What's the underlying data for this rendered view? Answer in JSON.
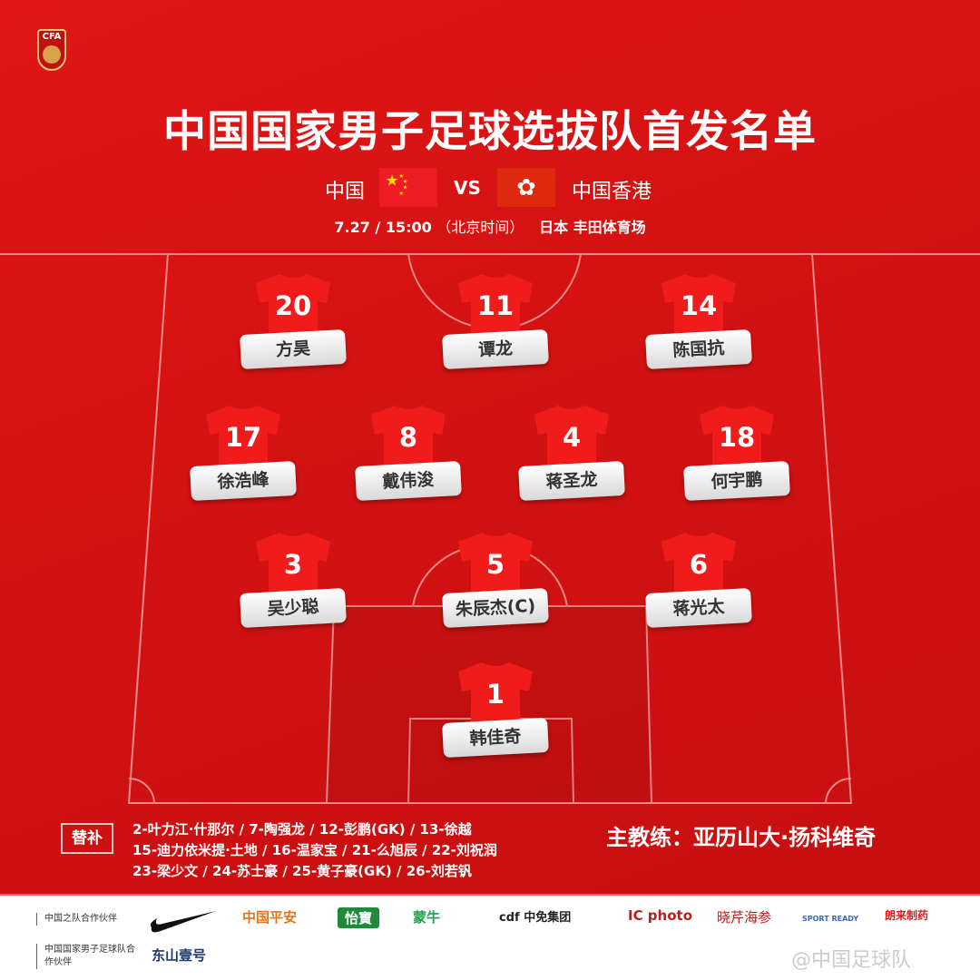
{
  "logo_text": "CFA",
  "title": "中国国家男子足球选拔队首发名单",
  "match": {
    "home": "中国",
    "vs": "VS",
    "away": "中国香港",
    "date_time": "7.27 / 15:00",
    "timezone": "（北京时间）",
    "venue": "日本 丰田体育场"
  },
  "colors": {
    "background": "#d41212",
    "jersey": "#f01c1c",
    "name_label": "#ffffff"
  },
  "players": [
    {
      "number": "20",
      "name": "方昊"
    },
    {
      "number": "11",
      "name": "谭龙"
    },
    {
      "number": "14",
      "name": "陈国抗"
    },
    {
      "number": "17",
      "name": "徐浩峰"
    },
    {
      "number": "8",
      "name": "戴伟浚"
    },
    {
      "number": "4",
      "name": "蒋圣龙"
    },
    {
      "number": "18",
      "name": "何宇鹏"
    },
    {
      "number": "3",
      "name": "吴少聪"
    },
    {
      "number": "5",
      "name": "朱辰杰(C)"
    },
    {
      "number": "6",
      "name": "蒋光太"
    },
    {
      "number": "1",
      "name": "韩佳奇"
    }
  ],
  "subs": {
    "label": "替补",
    "lines": [
      "2-叶力江·什那尔 / 7-陶强龙 / 12-彭鹏(GK) / 13-徐越",
      "15-迪力依米提·土地 / 16-温家宝 / 21-么旭辰 / 22-刘祝润",
      "23-梁少文 / 24-苏士豪 / 25-黄子豪(GK) / 26-刘若钒"
    ]
  },
  "coach": "主教练：亚历山大·扬科维奇",
  "footer": {
    "partner_label_1": "中国之队合作伙伴",
    "partner_label_2": "中国国家男子足球队合作伙伴",
    "sponsors": [
      "中国平安",
      "怡寶",
      "蒙牛",
      "cdf 中免集团",
      "IC photo",
      "晓芹海参",
      "SPORT READY",
      "朗来制药"
    ],
    "sponsor_2": "东山壹号",
    "watermark": "@中国足球队"
  }
}
